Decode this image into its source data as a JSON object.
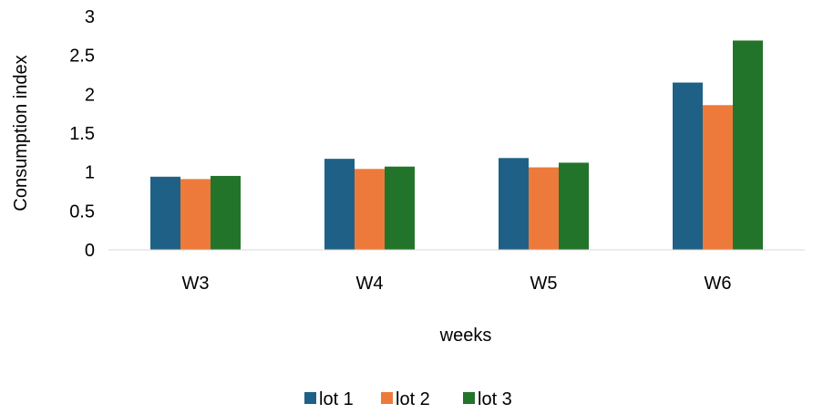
{
  "chart_data": {
    "type": "bar",
    "title": "",
    "xlabel": "weeks",
    "ylabel": "Consumption index",
    "ylim": [
      0,
      3
    ],
    "yticks": [
      "0",
      "0.5",
      "1",
      "1.5",
      "2",
      "2.5",
      "3"
    ],
    "grid": false,
    "legend_position": "bottom",
    "categories": [
      "W3",
      "W4",
      "W5",
      "W6"
    ],
    "series": [
      {
        "name": "lot 1",
        "color": "#1f6186",
        "values": [
          0.94,
          1.17,
          1.18,
          2.15
        ]
      },
      {
        "name": "lot 2",
        "color": "#ed7a3b",
        "values": [
          0.91,
          1.04,
          1.06,
          1.86
        ]
      },
      {
        "name": "lot 3",
        "color": "#22742a",
        "values": [
          0.95,
          1.07,
          1.12,
          2.69
        ]
      }
    ]
  }
}
